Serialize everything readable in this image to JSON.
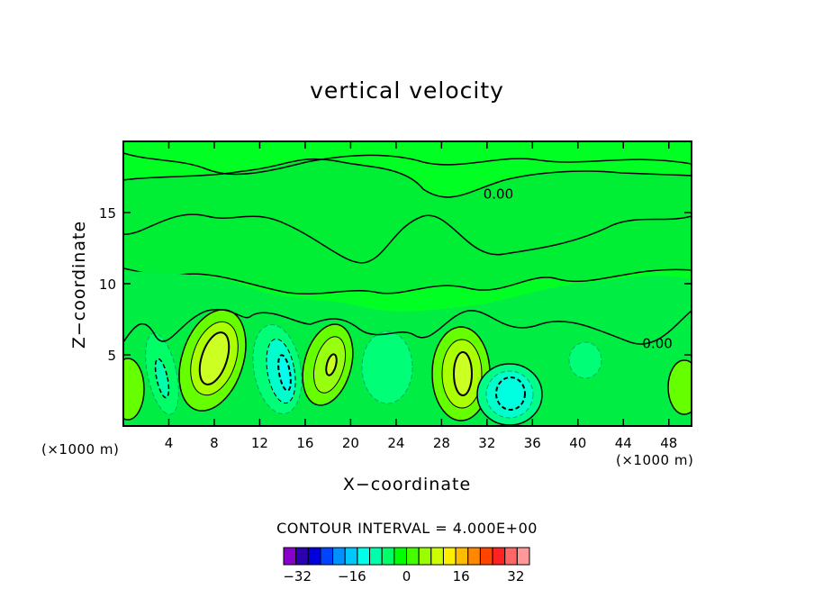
{
  "chart_data": {
    "type": "heatmap",
    "title": "vertical velocity",
    "xlabel": "X−coordinate",
    "ylabel": "Z−coordinate",
    "x_unit": "(×1000 m)",
    "y_unit": "(×1000 m)",
    "xlim": [
      0,
      50
    ],
    "ylim": [
      0,
      20
    ],
    "x_ticks": [
      4,
      8,
      12,
      16,
      20,
      24,
      28,
      32,
      36,
      40,
      44,
      48
    ],
    "y_ticks": [
      5,
      10,
      15
    ],
    "contour_interval_label": "CONTOUR INTERVAL = 4.000E+00",
    "contour_interval": 4,
    "contour_annotations": [
      {
        "text": "0.00",
        "x": 33,
        "z": 16.3
      },
      {
        "text": "0.00",
        "x": 47,
        "z": 5.8
      }
    ],
    "colorbar": {
      "range": [
        -36,
        36
      ],
      "tick_values": [
        -32,
        -16,
        0,
        16,
        32
      ],
      "tick_labels": [
        "−32",
        "−16",
        "0",
        "16",
        "32"
      ],
      "colors": [
        "#8800cc",
        "#2a00b0",
        "#0000dd",
        "#0044ff",
        "#0090ff",
        "#00c8ff",
        "#00ffe8",
        "#00ffaa",
        "#00ff66",
        "#00ff00",
        "#44ff00",
        "#99ff00",
        "#ccff00",
        "#ffee00",
        "#ffbb00",
        "#ff8800",
        "#ff4400",
        "#ff2222",
        "#ff6666",
        "#ff9999"
      ]
    },
    "features": [
      {
        "kind": "updraft",
        "x": 8.2,
        "z": 4.5,
        "peak": 12
      },
      {
        "kind": "updraft",
        "x": 18.5,
        "z": 4.2,
        "peak": 8
      },
      {
        "kind": "updraft",
        "x": 30,
        "z": 3.8,
        "peak": 12
      },
      {
        "kind": "updraft",
        "x": 1,
        "z": 2.5,
        "peak": 6
      },
      {
        "kind": "updraft",
        "x": 49.5,
        "z": 2.8,
        "peak": 5
      },
      {
        "kind": "downdraft",
        "x": 3.5,
        "z": 3.5,
        "peak": -6
      },
      {
        "kind": "downdraft",
        "x": 14,
        "z": 3.5,
        "peak": -10
      },
      {
        "kind": "downdraft",
        "x": 22.5,
        "z": 4,
        "peak": -5
      },
      {
        "kind": "downdraft",
        "x": 34,
        "z": 2.2,
        "peak": -10
      },
      {
        "kind": "downdraft",
        "x": 40.5,
        "z": 4.5,
        "peak": -5
      }
    ]
  }
}
